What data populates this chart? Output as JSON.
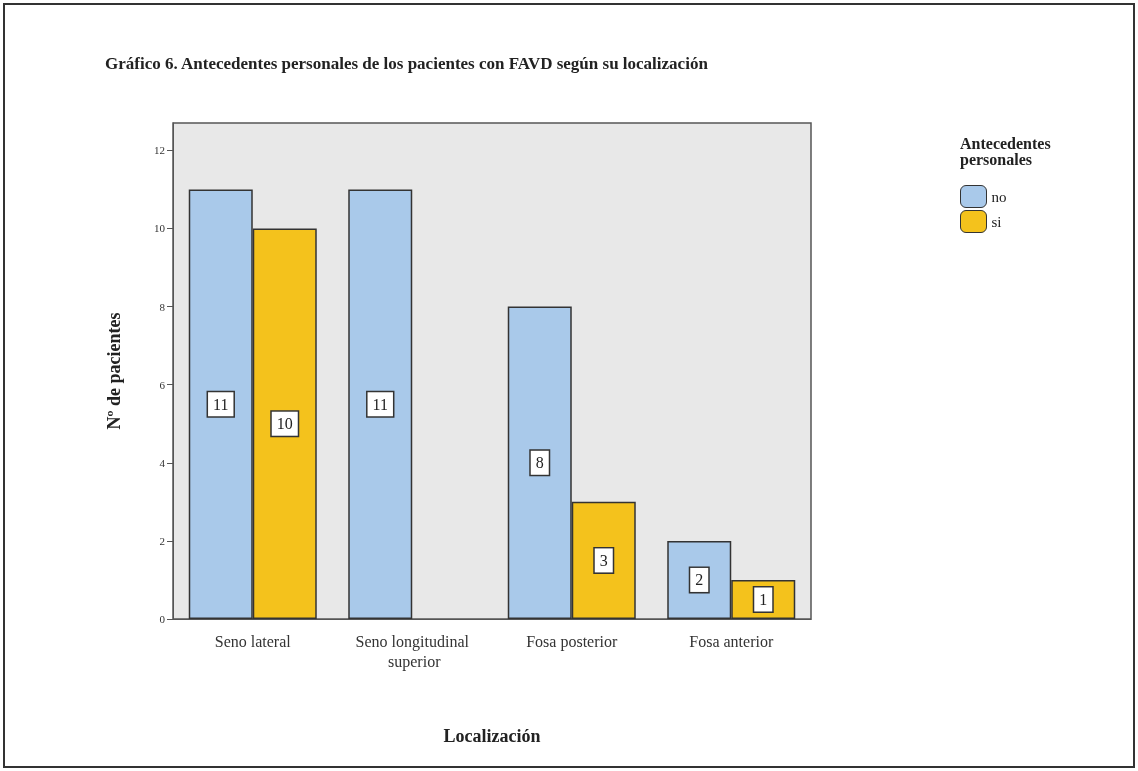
{
  "chart_data": {
    "type": "bar",
    "title": "Gráfico 6. Antecedentes personales de los pacientes con FAVD según su localización",
    "xlabel": "Localización",
    "ylabel": "Nº de pacientes",
    "legend_title": "Antecedentes personales",
    "categories": [
      "Seno lateral",
      "Seno longitudinal superior",
      "Fosa posterior",
      "Fosa anterior"
    ],
    "series": [
      {
        "name": "no",
        "color": "#a9c9ea",
        "values": [
          11,
          11,
          8,
          2
        ]
      },
      {
        "name": "si",
        "color": "#f4c21c",
        "values": [
          10,
          null,
          3,
          1
        ]
      }
    ],
    "ylim": [
      0,
      12.7
    ],
    "yticks": [
      0,
      2,
      4,
      6,
      8,
      10,
      12
    ],
    "grid": false,
    "legend": "top right",
    "data_labels": true
  }
}
